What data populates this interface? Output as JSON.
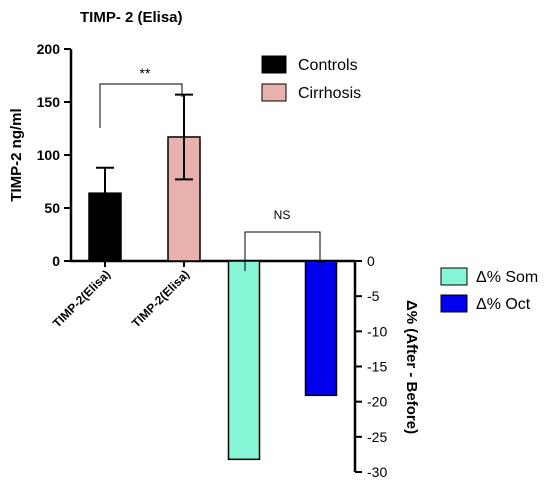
{
  "chart_data": {
    "title": "TIMP- 2 (Elisa)",
    "left_panel": {
      "type": "bar",
      "ylabel": "TIMP-2 ng/ml",
      "ylim": [
        0,
        200
      ],
      "yticks": [
        0,
        50,
        100,
        150,
        200
      ],
      "categories": [
        "TIMP-2(Elisa)",
        "TIMP-2(Elisa)"
      ],
      "series": [
        {
          "name": "Controls",
          "value": 64,
          "error": 24,
          "color": "#000000"
        },
        {
          "name": "Cirrhosis",
          "value": 117,
          "error": 40,
          "color": "#e8b1ae"
        }
      ],
      "significance": "**"
    },
    "right_panel": {
      "type": "bar",
      "ylabel": "Δ% (After - Before)",
      "ylim": [
        -30,
        0
      ],
      "yticks": [
        0,
        -5,
        -10,
        -15,
        -20,
        -25,
        -30
      ],
      "series": [
        {
          "name": "Δ% Som",
          "value": -28.2,
          "color": "#86f5d6"
        },
        {
          "name": "Δ% Oct",
          "value": -19.1,
          "color": "#0000ee"
        }
      ],
      "significance": "NS"
    }
  }
}
